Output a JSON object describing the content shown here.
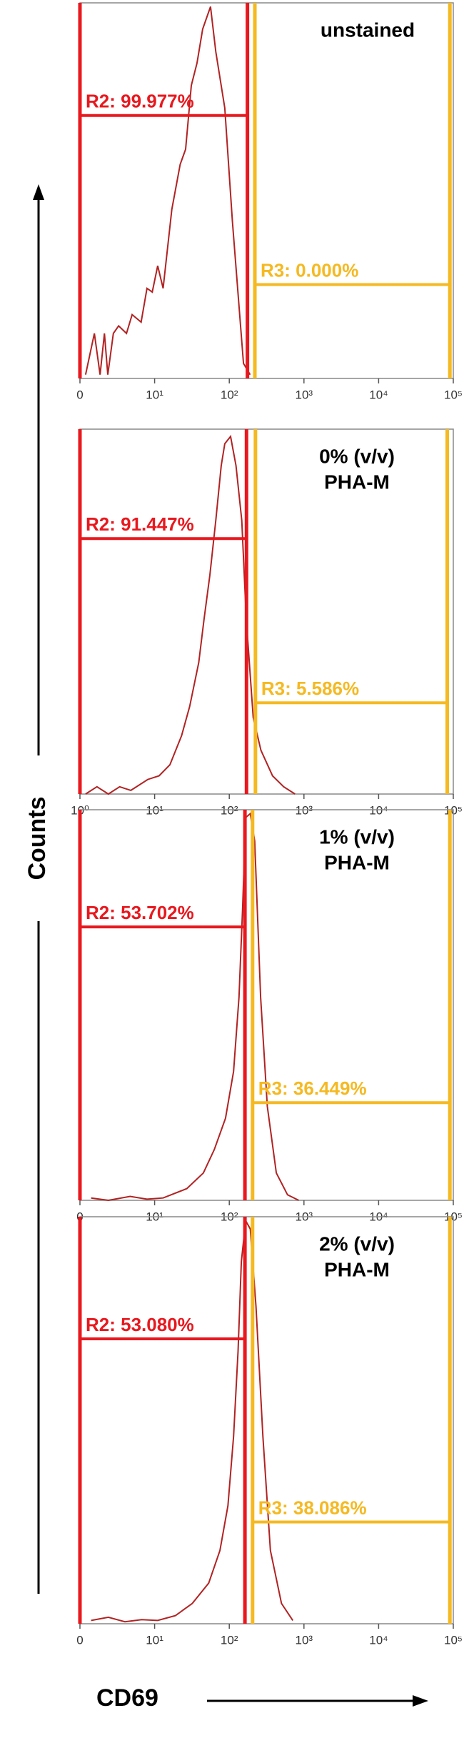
{
  "figure": {
    "ylabel": "Counts",
    "xlabel": "CD69"
  },
  "chart_data": [
    {
      "type": "line",
      "title_lines": [
        "unstained"
      ],
      "xscale": "log",
      "xlim": [
        1,
        100000
      ],
      "ylim": [
        0,
        100
      ],
      "xticks": [
        {
          "value": 1,
          "label": "0"
        },
        {
          "value": 10,
          "label": "10¹"
        },
        {
          "value": 100,
          "label": "10²"
        },
        {
          "value": 1000,
          "label": "10³"
        },
        {
          "value": 10000,
          "label": "10⁴"
        },
        {
          "value": 100000,
          "label": "10⁵"
        }
      ],
      "series": [
        {
          "color": "#b22222",
          "x": [
            1.19,
            1.56,
            1.86,
            2.13,
            2.36,
            2.8,
            3.3,
            4.2,
            5.0,
            6.6,
            7.9,
            9.3,
            11,
            13,
            17,
            22,
            26,
            31,
            37,
            44,
            56,
            66,
            87,
            110,
            155,
            190
          ],
          "values": [
            1,
            12,
            1,
            12,
            1,
            12,
            14,
            12,
            17,
            15,
            24,
            23,
            30,
            24,
            45,
            57,
            61,
            78,
            84,
            93,
            99,
            87,
            72,
            42,
            4,
            1
          ]
        }
      ],
      "gates": [
        {
          "label": "R2: 99.977%",
          "value": 99.977,
          "range": [
            1,
            175
          ],
          "color": "#e8181e"
        },
        {
          "label": "R3: 0.000%",
          "value": 0.0,
          "range": [
            220,
            90000
          ],
          "color": "#f5b921"
        }
      ]
    },
    {
      "type": "line",
      "title_lines": [
        "0% (v/v)",
        "PHA-M"
      ],
      "xscale": "log",
      "xlim": [
        1,
        100000
      ],
      "ylim": [
        0,
        100
      ],
      "xticks": [
        {
          "value": 1,
          "label": "10⁰"
        },
        {
          "value": 10,
          "label": "10¹"
        },
        {
          "value": 100,
          "label": "10²"
        },
        {
          "value": 1000,
          "label": "10³"
        },
        {
          "value": 10000,
          "label": "10⁴"
        },
        {
          "value": 100000,
          "label": "10⁵"
        }
      ],
      "series": [
        {
          "color": "#b22222",
          "x": [
            1.19,
            1.69,
            2.4,
            3.4,
            4.8,
            8.1,
            11.5,
            16,
            23,
            29.5,
            39,
            46,
            55,
            66,
            78,
            87,
            104,
            123,
            147,
            169,
            209,
            265,
            380,
            535,
            760
          ],
          "values": [
            0,
            2,
            0,
            2,
            1,
            4,
            5,
            8,
            16,
            24,
            36,
            48,
            60,
            75,
            90,
            96,
            98,
            90,
            75,
            48,
            21,
            12,
            5,
            2,
            0
          ]
        }
      ],
      "gates": [
        {
          "label": "R2: 91.447%",
          "value": 91.447,
          "range": [
            1,
            170
          ],
          "color": "#e8181e"
        },
        {
          "label": "R3: 5.586%",
          "value": 5.586,
          "range": [
            224,
            83000
          ],
          "color": "#f5b921"
        }
      ]
    },
    {
      "type": "line",
      "title_lines": [
        "1% (v/v)",
        "PHA-M"
      ],
      "xscale": "log",
      "xlim": [
        1,
        100000
      ],
      "ylim": [
        0,
        100
      ],
      "xticks": [
        {
          "value": 1,
          "label": "0"
        },
        {
          "value": 10,
          "label": "10¹"
        },
        {
          "value": 100,
          "label": "10²"
        },
        {
          "value": 1000,
          "label": "10³"
        },
        {
          "value": 10000,
          "label": "10⁴"
        },
        {
          "value": 100000,
          "label": "10⁵"
        }
      ],
      "series": [
        {
          "color": "#b22222",
          "x": [
            1.41,
            2.4,
            4.7,
            7.9,
            13,
            27,
            45,
            63,
            89,
            114,
            135,
            151,
            166,
            191,
            219,
            263,
            323,
            427,
            603,
            851
          ],
          "values": [
            0.6,
            0,
            1,
            0.3,
            0.6,
            3,
            7,
            13,
            21,
            33,
            52,
            75,
            98,
            99,
            92,
            52,
            24,
            7,
            1.4,
            0
          ]
        }
      ],
      "gates": [
        {
          "label": "R2: 53.702%",
          "value": 53.702,
          "range": [
            1,
            162
          ],
          "color": "#e8181e"
        },
        {
          "label": "R3: 36.449%",
          "value": 36.449,
          "range": [
            205,
            90000
          ],
          "color": "#f5b921"
        }
      ]
    },
    {
      "type": "line",
      "title_lines": [
        "2% (v/v)",
        "PHA-M"
      ],
      "xscale": "log",
      "xlim": [
        1,
        100000
      ],
      "ylim": [
        0,
        100
      ],
      "xticks": [
        {
          "value": 1,
          "label": "0"
        },
        {
          "value": 10,
          "label": "10¹"
        },
        {
          "value": 100,
          "label": "10²"
        },
        {
          "value": 1000,
          "label": "10³"
        },
        {
          "value": 10000,
          "label": "10⁴"
        },
        {
          "value": 100000,
          "label": "10⁵"
        }
      ],
      "series": [
        {
          "color": "#b22222",
          "x": [
            1.41,
            2.4,
            4.0,
            6.7,
            11,
            19,
            32,
            53,
            75,
            96,
            114,
            131,
            145,
            166,
            191,
            228,
            282,
            355,
            500,
            710
          ],
          "values": [
            0.8,
            1.6,
            0.5,
            1,
            0.8,
            2,
            5,
            10,
            18,
            29,
            46,
            67,
            89,
            99,
            97,
            78,
            46,
            18,
            5,
            0.8
          ]
        }
      ],
      "gates": [
        {
          "label": "R2: 53.080%",
          "value": 53.08,
          "range": [
            1,
            162
          ],
          "color": "#e8181e"
        },
        {
          "label": "R3: 38.086%",
          "value": 38.086,
          "range": [
            205,
            90000
          ],
          "color": "#f5b921"
        }
      ]
    }
  ]
}
